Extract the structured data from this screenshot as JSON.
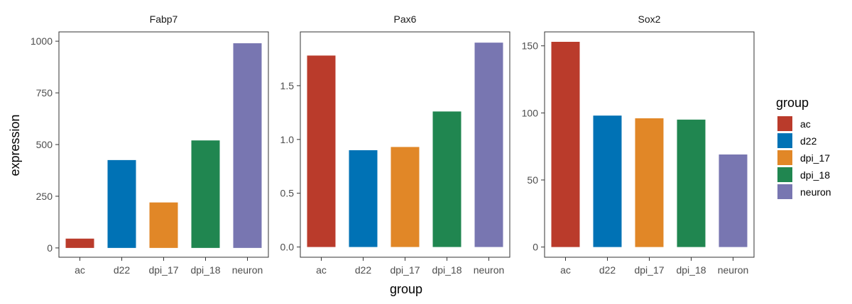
{
  "chart_data": {
    "type": "bar",
    "xlabel": "group",
    "ylabel": "expression",
    "categories": [
      "ac",
      "d22",
      "dpi_17",
      "dpi_18",
      "neuron"
    ],
    "colors": {
      "ac": "#BA3B2B",
      "d22": "#0072B5",
      "dpi_17": "#E18727",
      "dpi_18": "#208650",
      "neuron": "#7876B1"
    },
    "legend": {
      "title": "group",
      "position": "right",
      "items": [
        "ac",
        "d22",
        "dpi_17",
        "dpi_18",
        "neuron"
      ]
    },
    "grid": false,
    "panels": [
      {
        "title": "Fabp7",
        "values": [
          45,
          425,
          220,
          520,
          990
        ],
        "ylim": [
          -45,
          1045
        ],
        "yticks": [
          0,
          250,
          500,
          750,
          1000
        ],
        "ytick_labels": [
          "0",
          "250",
          "500",
          "750",
          "1000"
        ]
      },
      {
        "title": "Pax6",
        "values": [
          1.78,
          0.9,
          0.93,
          1.26,
          1.9
        ],
        "ylim": [
          -0.095,
          2.0
        ],
        "yticks": [
          0.0,
          0.5,
          1.0,
          1.5
        ],
        "ytick_labels": [
          "0.0",
          "0.5",
          "1.0",
          "1.5"
        ]
      },
      {
        "title": "Sox2",
        "values": [
          153,
          98,
          96,
          95,
          69
        ],
        "ylim": [
          -7.6,
          160.4
        ],
        "yticks": [
          0,
          50,
          100,
          150
        ],
        "ytick_labels": [
          "0",
          "50",
          "100",
          "150"
        ]
      }
    ]
  }
}
